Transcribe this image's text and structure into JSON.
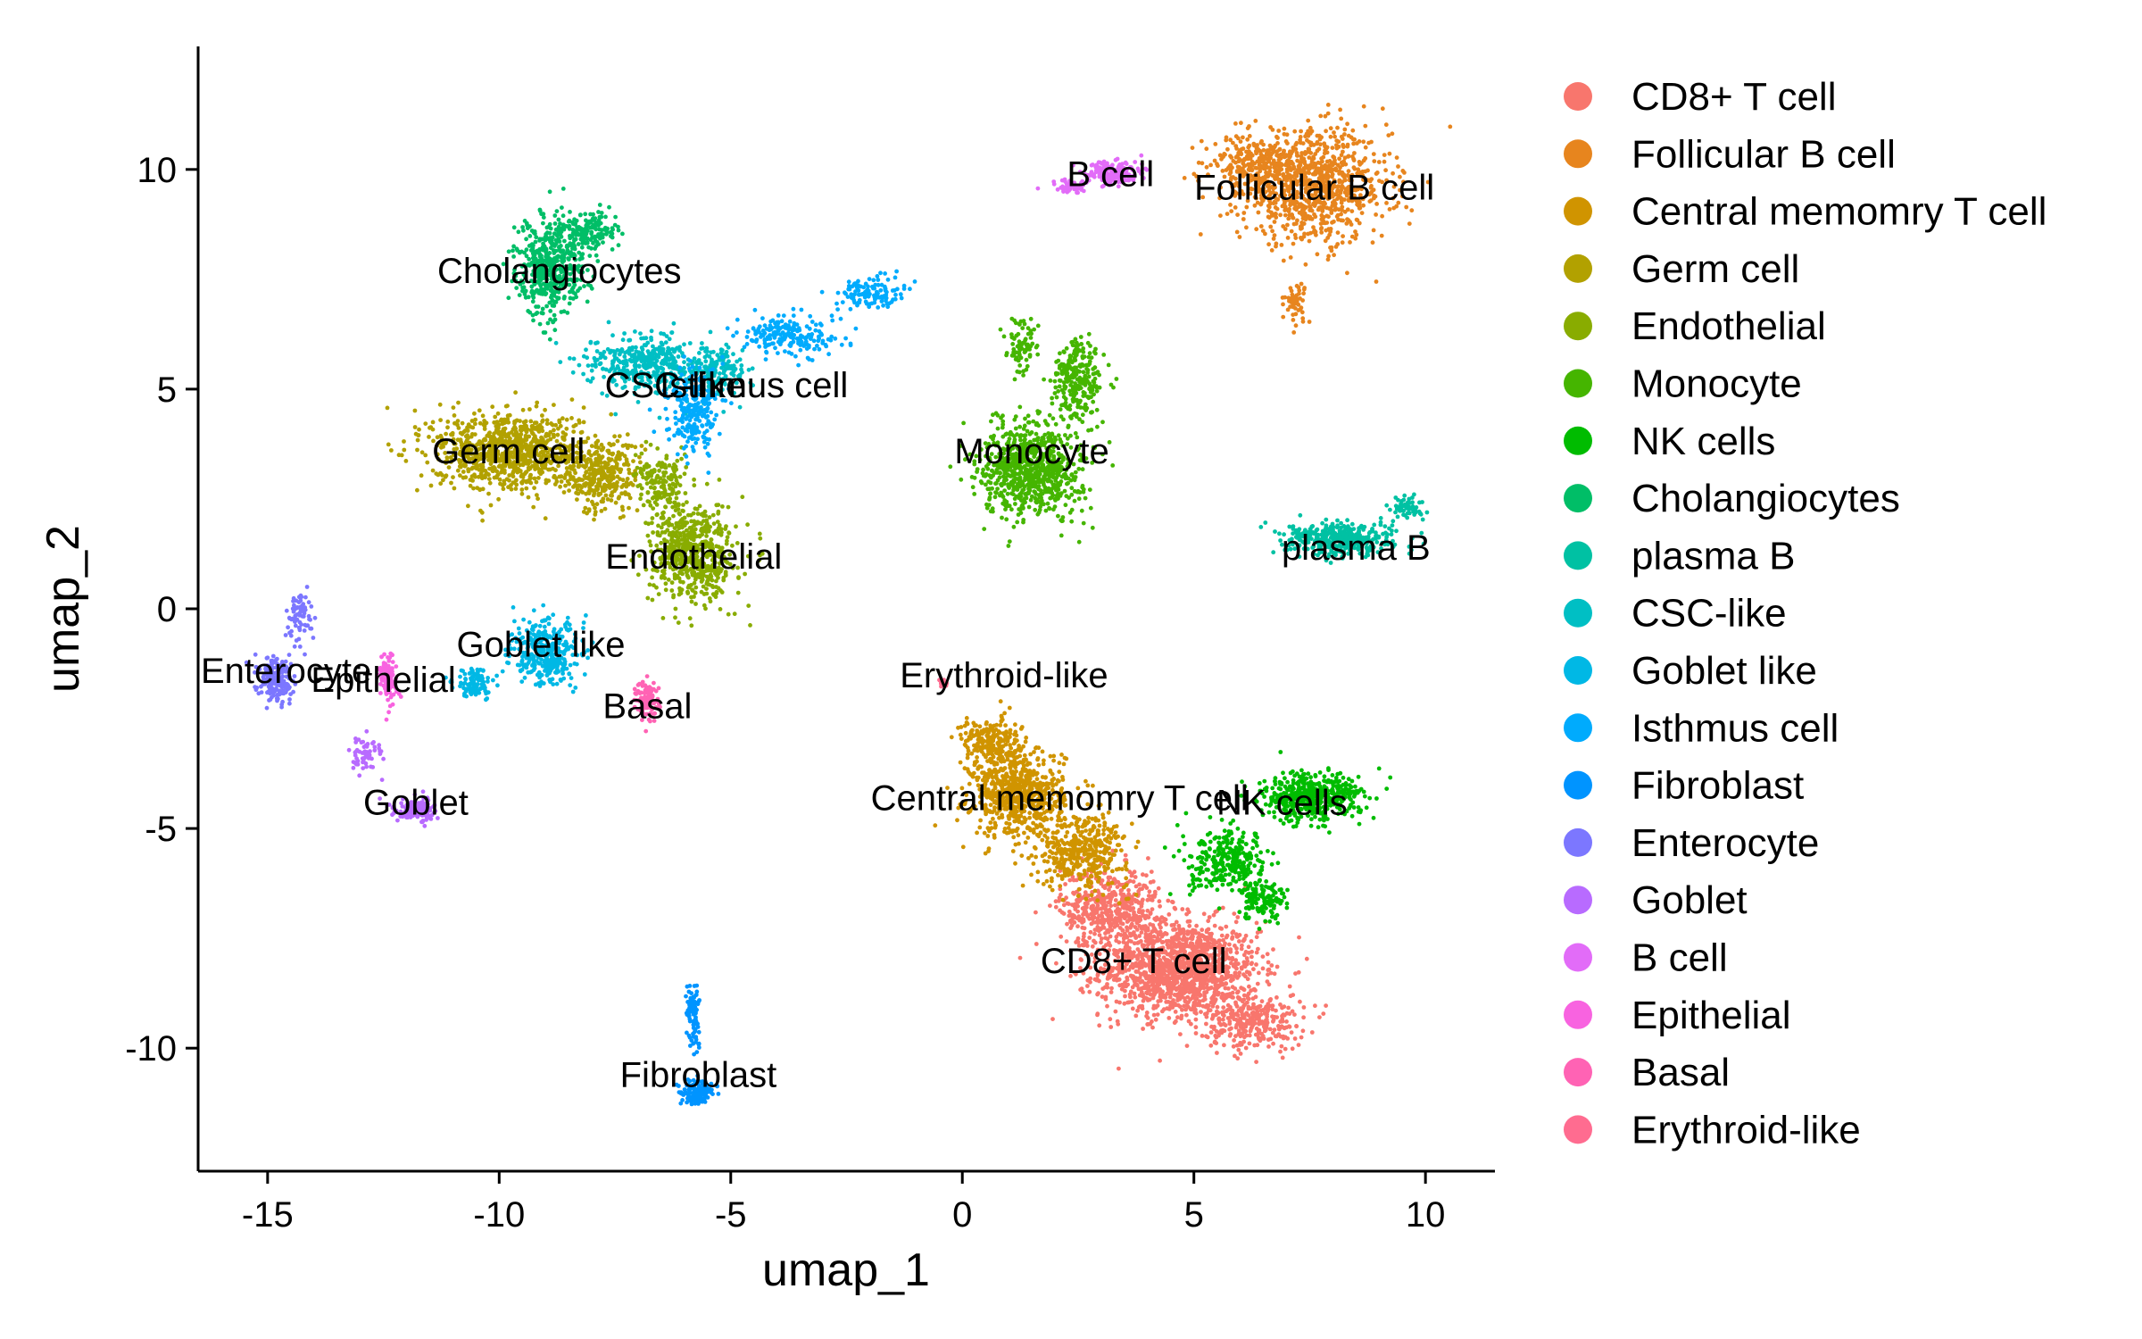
{
  "chart_data": {
    "type": "scatter",
    "title": "",
    "xlabel": "umap_1",
    "ylabel": "umap_2",
    "xlim": [
      -16.5,
      11.5
    ],
    "ylim": [
      -12.8,
      12.8
    ],
    "x_ticks": [
      -15,
      -10,
      -5,
      0,
      5,
      10
    ],
    "y_ticks": [
      -10,
      -5,
      0,
      5,
      10
    ],
    "grid": false,
    "legend_position": "right",
    "series": [
      {
        "name": "CD8+ T cell",
        "color": "#F8766D",
        "label_x": 3.7,
        "label_y": -8.1,
        "blobs": [
          [
            4.7,
            -8.2,
            1.9,
            1.2,
            1400
          ],
          [
            3.2,
            -6.8,
            1.2,
            1.0,
            500
          ],
          [
            6.3,
            -9.4,
            1.2,
            0.7,
            300
          ]
        ]
      },
      {
        "name": "Follicular B cell",
        "color": "#E7851E",
        "label_x": 7.6,
        "label_y": 9.6,
        "blobs": [
          [
            7.6,
            9.6,
            1.8,
            1.4,
            900
          ],
          [
            6.3,
            10.1,
            1.0,
            0.7,
            250
          ],
          [
            7.2,
            7.0,
            0.25,
            0.5,
            50
          ]
        ]
      },
      {
        "name": "Central memomry T cell",
        "color": "#D09400",
        "label_x": 2.2,
        "label_y": -4.4,
        "blobs": [
          [
            1.2,
            -4.2,
            1.1,
            1.1,
            700
          ],
          [
            2.6,
            -5.5,
            1.1,
            0.9,
            400
          ],
          [
            0.6,
            -3.0,
            0.7,
            0.6,
            200
          ]
        ]
      },
      {
        "name": "Germ cell",
        "color": "#B2A100",
        "label_x": -9.7,
        "label_y": 3.6,
        "blobs": [
          [
            -9.8,
            3.6,
            1.8,
            1.0,
            900
          ],
          [
            -7.8,
            3.0,
            0.9,
            0.9,
            300
          ]
        ]
      },
      {
        "name": "Endothelial",
        "color": "#89AC00",
        "label_x": -5.8,
        "label_y": 1.3,
        "blobs": [
          [
            -5.8,
            1.3,
            1.0,
            1.3,
            600
          ],
          [
            -6.5,
            2.8,
            0.6,
            0.7,
            150
          ]
        ]
      },
      {
        "name": "Monocyte",
        "color": "#45B500",
        "label_x": 1.5,
        "label_y": 3.6,
        "blobs": [
          [
            1.5,
            3.2,
            1.2,
            1.2,
            800
          ],
          [
            2.5,
            5.2,
            0.6,
            1.0,
            250
          ],
          [
            1.3,
            6.0,
            0.4,
            0.7,
            80
          ]
        ]
      },
      {
        "name": "NK cells",
        "color": "#00BC00",
        "label_x": 7.0,
        "label_y": -4.5,
        "blobs": [
          [
            7.5,
            -4.3,
            1.2,
            0.6,
            500
          ],
          [
            5.8,
            -5.8,
            1.0,
            0.8,
            300
          ],
          [
            6.5,
            -6.6,
            0.6,
            0.5,
            120
          ]
        ]
      },
      {
        "name": "Cholangiocytes",
        "color": "#00BE67",
        "label_x": -8.9,
        "label_y": 7.8,
        "blobs": [
          [
            -8.9,
            7.8,
            0.8,
            1.2,
            500
          ],
          [
            -8.0,
            8.6,
            0.6,
            0.5,
            150
          ]
        ]
      },
      {
        "name": "plasma B",
        "color": "#00C1A3",
        "label_x": 8.3,
        "label_y": 1.6,
        "blobs": [
          [
            8.2,
            1.6,
            1.3,
            0.4,
            400
          ],
          [
            9.6,
            2.3,
            0.4,
            0.3,
            60
          ]
        ]
      },
      {
        "name": "CSC-like",
        "color": "#00BFC4",
        "label_x": -6.8,
        "label_y": 5.4,
        "blobs": [
          [
            -6.8,
            5.6,
            1.4,
            0.7,
            400
          ],
          [
            -5.3,
            5.4,
            0.7,
            0.6,
            150
          ]
        ]
      },
      {
        "name": "Goblet like",
        "color": "#00B8E5",
        "label_x": -9.0,
        "label_y": -1.0,
        "blobs": [
          [
            -9.0,
            -1.0,
            0.8,
            0.8,
            350
          ],
          [
            -10.5,
            -1.7,
            0.5,
            0.4,
            100
          ]
        ]
      },
      {
        "name": "Isthmus cell",
        "color": "#00ABFD",
        "label_x": -5.6,
        "label_y": 4.8,
        "blobs": [
          [
            -5.8,
            4.5,
            0.6,
            1.0,
            250
          ],
          [
            -3.8,
            6.2,
            1.2,
            0.5,
            200
          ],
          [
            -2.0,
            7.2,
            0.8,
            0.4,
            120
          ]
        ]
      },
      {
        "name": "Fibroblast",
        "color": "#0094FF",
        "label_x": -5.7,
        "label_y": -10.5,
        "blobs": [
          [
            -5.7,
            -11.0,
            0.4,
            0.3,
            150
          ],
          [
            -5.8,
            -9.2,
            0.15,
            0.8,
            80
          ]
        ]
      },
      {
        "name": "Enterocyte",
        "color": "#7C77FF",
        "label_x": -14.8,
        "label_y": -1.3,
        "blobs": [
          [
            -14.8,
            -1.6,
            0.4,
            0.6,
            200
          ],
          [
            -14.3,
            -0.2,
            0.3,
            0.6,
            80
          ]
        ]
      },
      {
        "name": "Goblet",
        "color": "#B86BFF",
        "label_x": -11.8,
        "label_y": -4.6,
        "blobs": [
          [
            -11.8,
            -4.6,
            0.5,
            0.3,
            150
          ],
          [
            -12.9,
            -3.3,
            0.4,
            0.5,
            60
          ]
        ]
      },
      {
        "name": "B cell",
        "color": "#E26CF8",
        "label_x": 3.2,
        "label_y": 9.9,
        "blobs": [
          [
            3.2,
            9.9,
            0.7,
            0.3,
            200
          ],
          [
            2.3,
            9.6,
            0.4,
            0.2,
            50
          ]
        ]
      },
      {
        "name": "Epithelial",
        "color": "#F863E0",
        "label_x": -12.4,
        "label_y": -1.6,
        "blobs": [
          [
            -12.4,
            -1.6,
            0.2,
            0.6,
            120
          ]
        ]
      },
      {
        "name": "Basal",
        "color": "#FF63B4",
        "label_x": -6.8,
        "label_y": -2.1,
        "blobs": [
          [
            -6.8,
            -2.1,
            0.25,
            0.5,
            120
          ]
        ]
      },
      {
        "name": "Erythroid-like",
        "color": "#FF6C90",
        "label_x": -0.4,
        "label_y": -1.7,
        "blobs": [
          [
            -0.4,
            -1.7,
            0.15,
            0.1,
            15
          ]
        ]
      }
    ],
    "annotations": [
      {
        "text": "Cholangiocytes",
        "x": -8.7,
        "y": 7.7
      },
      {
        "text": "CSC-like",
        "x": -6.2,
        "y": 5.1
      },
      {
        "text": "Isthmus cell",
        "x": -4.5,
        "y": 5.1
      },
      {
        "text": "Germ cell",
        "x": -9.8,
        "y": 3.6
      },
      {
        "text": "Monocyte",
        "x": 1.5,
        "y": 3.6
      },
      {
        "text": "Endothelial",
        "x": -5.8,
        "y": 1.2
      },
      {
        "text": "plasma B",
        "x": 8.5,
        "y": 1.4
      },
      {
        "text": "Goblet like",
        "x": -9.1,
        "y": -0.8
      },
      {
        "text": "Enterocyte",
        "x": -14.6,
        "y": -1.4
      },
      {
        "text": "Epithelial",
        "x": -12.5,
        "y": -1.6
      },
      {
        "text": "Erythroid-like",
        "x": 0.9,
        "y": -1.5
      },
      {
        "text": "Basal",
        "x": -6.8,
        "y": -2.2
      },
      {
        "text": "Central memomry T cell",
        "x": 2.1,
        "y": -4.3
      },
      {
        "text": "NK cells",
        "x": 6.9,
        "y": -4.4
      },
      {
        "text": "Goblet",
        "x": -11.8,
        "y": -4.4
      },
      {
        "text": "B cell",
        "x": 3.2,
        "y": 9.9
      },
      {
        "text": "Follicular B cell",
        "x": 7.6,
        "y": 9.6
      },
      {
        "text": "CD8+ T cell",
        "x": 3.7,
        "y": -8.0
      },
      {
        "text": "Fibroblast",
        "x": -5.7,
        "y": -10.6
      }
    ]
  }
}
